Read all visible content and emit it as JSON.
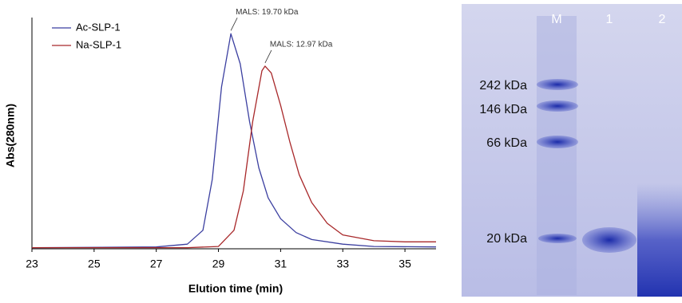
{
  "chart_data": {
    "type": "line",
    "x_label": "Elution time (min)",
    "y_label": "Abs(280nm)",
    "xlim": [
      23,
      36
    ],
    "xticks": [
      23,
      25,
      27,
      29,
      31,
      33,
      35
    ],
    "ylim": [
      0,
      100
    ],
    "legend": "upper left",
    "grid": false,
    "annotations": [
      "MALS: 19.70 kDa",
      "MALS: 12.97 kDa"
    ],
    "series": [
      {
        "name": "Ac-SLP-1",
        "color": "#3b3fa0",
        "x": [
          23,
          27,
          28,
          28.5,
          28.8,
          29.1,
          29.4,
          29.7,
          30,
          30.3,
          30.6,
          31,
          31.5,
          32,
          33,
          34,
          36
        ],
        "values": [
          0.5,
          0.8,
          2,
          8,
          30,
          70,
          93,
          80,
          55,
          35,
          22,
          13,
          7,
          4,
          2,
          1,
          0.8
        ]
      },
      {
        "name": "Na-SLP-1",
        "color": "#a8282a",
        "x": [
          23,
          28,
          29,
          29.5,
          29.8,
          30.1,
          30.4,
          30.5,
          30.7,
          31,
          31.3,
          31.6,
          32,
          32.5,
          33,
          34,
          35,
          36
        ],
        "values": [
          0.5,
          0.5,
          1,
          8,
          25,
          55,
          77,
          79,
          76,
          62,
          46,
          32,
          20,
          11,
          6,
          3.5,
          3,
          3
        ]
      }
    ]
  },
  "gel": {
    "lanes": [
      "M",
      "1",
      "2"
    ],
    "markers": [
      "242 kDa",
      "146 kDa",
      "66 kDa",
      "20 kDa"
    ]
  }
}
